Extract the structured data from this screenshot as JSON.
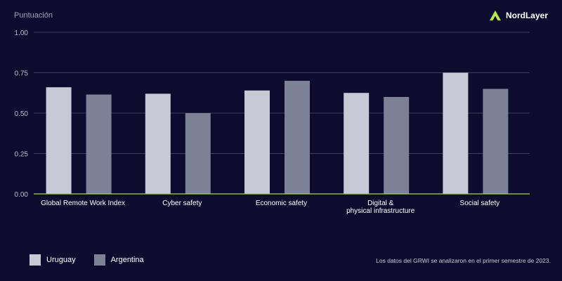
{
  "brand": {
    "name": "NordLayer",
    "accent": "#b8e84f"
  },
  "colors": {
    "background": "#0d0c2e",
    "grid": "#3d3c5c",
    "axis": "#a5d63f"
  },
  "chart_data": {
    "type": "bar",
    "title": "",
    "ylabel": "Puntuación",
    "xlabel": "",
    "ylim": [
      0,
      1
    ],
    "yticks": [
      "0.00",
      "0.25",
      "0.50",
      "0.75",
      "1.00"
    ],
    "grid": true,
    "legend_position": "bottom-left",
    "categories": [
      "Global Remote Work Index",
      "Cyber safety",
      "Economic safety",
      "Digital & physical infrastructure",
      "Social safety"
    ],
    "series": [
      {
        "name": "Uruguay",
        "color": "#c8c9d6",
        "values": [
          0.66,
          0.62,
          0.64,
          0.625,
          0.75
        ]
      },
      {
        "name": "Argentina",
        "color": "#7c8196",
        "values": [
          0.615,
          0.5,
          0.7,
          0.6,
          0.65
        ]
      }
    ]
  },
  "footnote": "Los datos del GRWI se analizaron en el primer semestre de 2023."
}
